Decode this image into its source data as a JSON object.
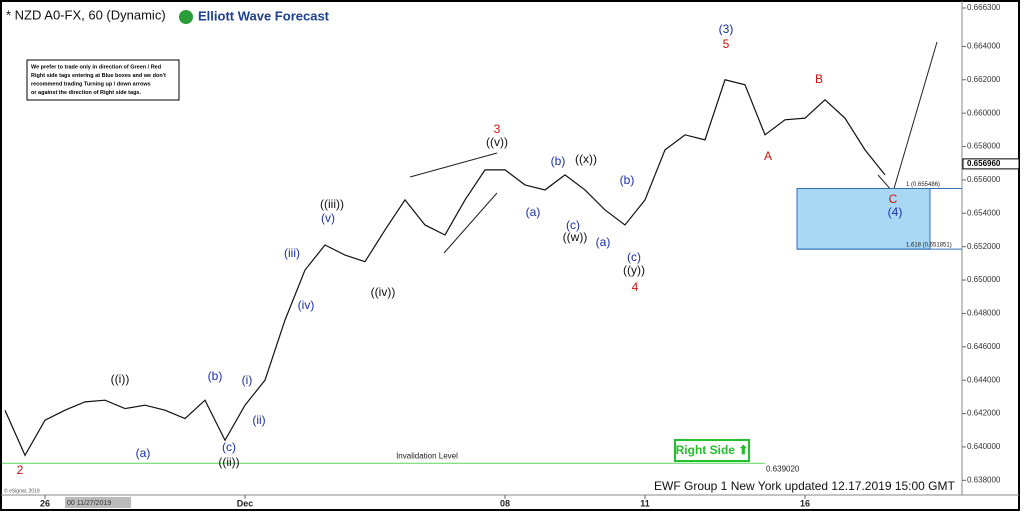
{
  "chart_data": {
    "type": "line",
    "title": "* NZD A0-FX, 60 (Dynamic)",
    "brand": "Elliott Wave Forecast",
    "note": [
      "We prefer to trade only in direction of Green / Red",
      "Right side tags entering at Blue boxes and we don't",
      "recommend trading Turning up / down arrows",
      "or against the direction of Right side tags."
    ],
    "categories": [
      null,
      null,
      "26",
      null,
      null,
      null,
      null,
      null,
      null,
      null,
      null,
      null,
      "Dec",
      null,
      null,
      null,
      null,
      null,
      null,
      null,
      null,
      null,
      null,
      null,
      null,
      "08",
      null,
      null,
      null,
      null,
      null,
      null,
      "11",
      null,
      null,
      null,
      null,
      null,
      null,
      null,
      "16",
      null,
      null,
      null,
      null
    ],
    "values": [
      0.6422,
      0.6395,
      0.6416,
      0.6422,
      0.6427,
      0.6428,
      0.6423,
      0.6425,
      0.6422,
      0.6417,
      0.6428,
      0.6404,
      0.6425,
      0.644,
      0.6476,
      0.6506,
      0.6521,
      0.6515,
      0.6511,
      0.653,
      0.6548,
      0.6533,
      0.6527,
      0.6548,
      0.6566,
      0.6566,
      0.6557,
      0.6554,
      0.6563,
      0.6554,
      0.6542,
      0.6533,
      0.6548,
      0.6578,
      0.6587,
      0.6584,
      0.662,
      0.6617,
      0.6587,
      0.6596,
      0.6597,
      0.6608,
      0.6597,
      0.6578,
      0.6563
    ],
    "color": "#111111",
    "ylim": [
      0.6373,
      0.6663
    ],
    "yticks": [
      {
        "value": 0.638,
        "label": "0.638000"
      },
      {
        "value": 0.64,
        "label": "0.640000"
      },
      {
        "value": 0.642,
        "label": "0.642000"
      },
      {
        "value": 0.644,
        "label": "0.644000"
      },
      {
        "value": 0.646,
        "label": "0.646000"
      },
      {
        "value": 0.648,
        "label": "0.648000"
      },
      {
        "value": 0.65,
        "label": "0.650000"
      },
      {
        "value": 0.652,
        "label": "0.652000"
      },
      {
        "value": 0.654,
        "label": "0.654000"
      },
      {
        "value": 0.656,
        "label": "0.656000"
      },
      {
        "value": 0.658,
        "label": "0.658000"
      },
      {
        "value": 0.66,
        "label": "0.660000"
      },
      {
        "value": 0.662,
        "label": "0.662000"
      },
      {
        "value": 0.664,
        "label": "0.664000"
      },
      {
        "value": 0.6663,
        "label": "0.666300"
      }
    ],
    "last_price": {
      "value": 0.65696,
      "label": "0.656960"
    },
    "fib_levels": [
      {
        "value": 0.655486,
        "label": "1 (0.655486)"
      },
      {
        "value": 0.651851,
        "label": "1.618 (0.651851)"
      }
    ],
    "invalidation": {
      "value": 0.63902,
      "label": "Invalidation Level",
      "value_label": "0.639020"
    },
    "right_side": "Right Side ⬆",
    "cursor_date": "00 11/27/2019",
    "copyright": "© eSignal, 2019",
    "footer": "EWF Group 1 New York updated 12.17.2019 15:00 GMT",
    "annotations": [
      {
        "text": "2",
        "color": "#d01010"
      },
      {
        "text": "((i))",
        "color": "#111111"
      },
      {
        "text": "(a)",
        "color": "#1a2fa8"
      },
      {
        "text": "(b)",
        "color": "#1a2fa8"
      },
      {
        "text": "(c)",
        "color": "#1a2fa8"
      },
      {
        "text": "((ii))",
        "color": "#111111"
      },
      {
        "text": "(i)",
        "color": "#1a2fa8"
      },
      {
        "text": "(ii)",
        "color": "#1a2fa8"
      },
      {
        "text": "(iii)",
        "color": "#1a2fa8"
      },
      {
        "text": "(iv)",
        "color": "#1a2fa8"
      },
      {
        "text": "((iii))",
        "color": "#111111"
      },
      {
        "text": "(v)",
        "color": "#1a2fa8"
      },
      {
        "text": "((iv))",
        "color": "#111111"
      },
      {
        "text": "3",
        "color": "#d01010"
      },
      {
        "text": "((v))",
        "color": "#111111"
      },
      {
        "text": "(a)",
        "color": "#1a2fa8"
      },
      {
        "text": "(b)",
        "color": "#1a2fa8"
      },
      {
        "text": "((x))",
        "color": "#111111"
      },
      {
        "text": "(c)",
        "color": "#1a2fa8"
      },
      {
        "text": "((w))",
        "color": "#111111"
      },
      {
        "text": "(a)",
        "color": "#1a2fa8"
      },
      {
        "text": "(b)",
        "color": "#1a2fa8"
      },
      {
        "text": "(c)",
        "color": "#1a2fa8"
      },
      {
        "text": "((y))",
        "color": "#111111"
      },
      {
        "text": "4",
        "color": "#d01010"
      },
      {
        "text": "(3)",
        "color": "#1a2fa8"
      },
      {
        "text": "5",
        "color": "#d01010"
      },
      {
        "text": "A",
        "color": "#d01010"
      },
      {
        "text": "B",
        "color": "#d01010"
      },
      {
        "text": "C",
        "color": "#d01010"
      },
      {
        "text": "(4)",
        "color": "#1a2fa8"
      }
    ]
  }
}
